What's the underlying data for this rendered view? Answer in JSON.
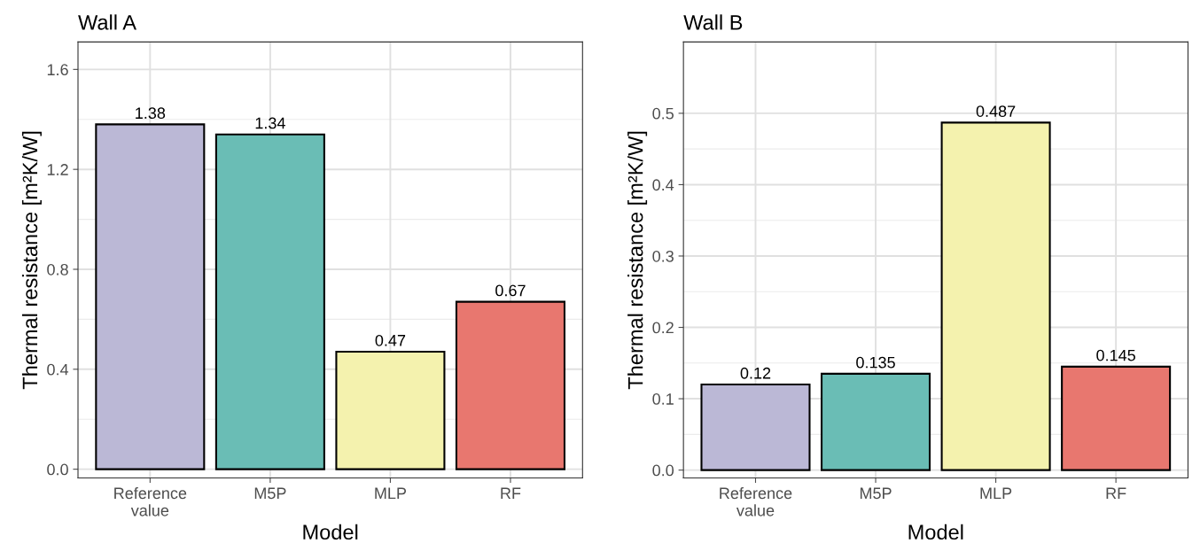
{
  "chart_data": [
    {
      "type": "bar",
      "title": "Wall A",
      "xlabel": "Model",
      "ylabel": "Thermal resistance [m²K/W]",
      "categories": [
        "Reference\nvalue",
        "M5P",
        "MLP",
        "RF"
      ],
      "values": [
        1.38,
        1.34,
        0.47,
        0.67
      ],
      "colors": [
        "#bbb8d6",
        "#6abdb5",
        "#f4f2ae",
        "#e8776f"
      ],
      "ylim": [
        -0.035,
        1.71
      ],
      "yticks": [
        {
          "value": 0,
          "label": "0.0"
        },
        0.4,
        0.8,
        1.2,
        1.6
      ],
      "grid": true,
      "data_labels": true
    },
    {
      "type": "bar",
      "title": "Wall B",
      "xlabel": "Model",
      "ylabel": "Thermal resistance [m²K/W]",
      "categories": [
        "Reference\nvalue",
        "M5P",
        "MLP",
        "RF"
      ],
      "values": [
        0.12,
        0.135,
        0.487,
        0.145
      ],
      "colors": [
        "#bbb8d6",
        "#6abdb5",
        "#f4f2ae",
        "#e8776f"
      ],
      "ylim": [
        -0.011,
        0.6
      ],
      "yticks": [
        {
          "value": 0,
          "label": "0.0"
        },
        0.1,
        0.2,
        0.3,
        0.4,
        0.5
      ],
      "grid": true,
      "data_labels": true
    }
  ]
}
